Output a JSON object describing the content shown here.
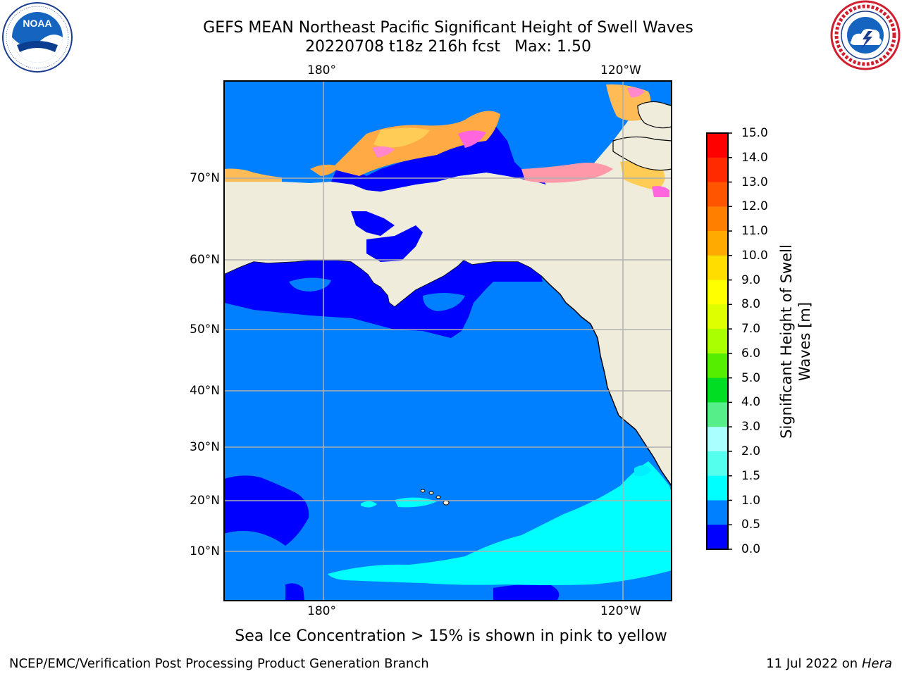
{
  "title": {
    "line1": "GEFS MEAN Northeast Pacific Significant Height of Swell Waves",
    "run": "20220708 t18z 216h fcst",
    "max": "Max: 1.50"
  },
  "logos": {
    "left": {
      "icon": "noaa-logo",
      "text": "NOAA",
      "ring_text": "NATIONAL OCEANIC AND ATMOSPHERIC ADMINISTRATION · U.S. DEPARTMENT OF COMMERCE"
    },
    "right": {
      "icon": "nws-logo",
      "ring_text": "NATIONAL WEATHER SERVICE"
    }
  },
  "map": {
    "projection": "polar-stereographic",
    "lon_labels_top": [
      "180°",
      "120°W"
    ],
    "lon_labels_bottom": [
      "180°",
      "120°W"
    ],
    "lat_labels": [
      "70°N",
      "60°N",
      "50°N",
      "40°N",
      "30°N",
      "20°N",
      "10°N"
    ],
    "gridlines": true,
    "land_color": "#efecdc",
    "coastline_color": "#000000",
    "max_value": 1.5
  },
  "colorbar": {
    "label": "Significant Height of Swell Waves [m]",
    "ticks": [
      "15.0",
      "14.0",
      "13.0",
      "12.0",
      "11.0",
      "10.0",
      "9.0",
      "8.0",
      "7.0",
      "6.0",
      "5.0",
      "4.0",
      "3.0",
      "2.0",
      "1.5",
      "1.0",
      "0.5",
      "0.0"
    ],
    "bins": [
      {
        "range": "14.0-15.0",
        "color": "#ff0000"
      },
      {
        "range": "13.0-14.0",
        "color": "#ff2a00"
      },
      {
        "range": "12.0-13.0",
        "color": "#ff5500"
      },
      {
        "range": "11.0-12.0",
        "color": "#ff7f00"
      },
      {
        "range": "10.0-11.0",
        "color": "#ffaa00"
      },
      {
        "range": "9.0-10.0",
        "color": "#ffdd00"
      },
      {
        "range": "8.0-9.0",
        "color": "#ffff00"
      },
      {
        "range": "7.0-8.0",
        "color": "#ddff00"
      },
      {
        "range": "6.0-7.0",
        "color": "#aaff00"
      },
      {
        "range": "5.0-6.0",
        "color": "#55ee00"
      },
      {
        "range": "4.0-5.0",
        "color": "#00dd22"
      },
      {
        "range": "3.0-4.0",
        "color": "#55ee88"
      },
      {
        "range": "2.0-3.0",
        "color": "#aaffff"
      },
      {
        "range": "1.5-2.0",
        "color": "#55ffee"
      },
      {
        "range": "1.0-1.5",
        "color": "#00ffff"
      },
      {
        "range": "0.5-1.0",
        "color": "#0080ff"
      },
      {
        "range": "0.0-0.5",
        "color": "#0000ff"
      }
    ]
  },
  "sea_ice_note": "Sea Ice Concentration > 15% is shown in pink to yellow",
  "footer": {
    "left": "NCEP/EMC/Verification Post Processing Product Generation Branch",
    "date": "11 Jul 2022 on",
    "machine": "Hera"
  }
}
